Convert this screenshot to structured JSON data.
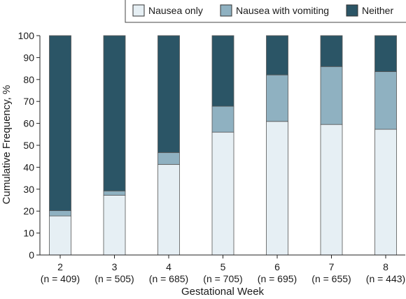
{
  "chart_data": {
    "type": "bar",
    "stacked": true,
    "cumulative": true,
    "categories": [
      "2",
      "3",
      "4",
      "5",
      "6",
      "7",
      "8"
    ],
    "category_sublabels": [
      "(n = 409)",
      "(n = 505)",
      "(n = 685)",
      "(n = 705)",
      "(n = 695)",
      "(n = 655)",
      "(n = 443)"
    ],
    "series": [
      {
        "name": "Nausea only",
        "color": "#e6eff4",
        "values": [
          17.8,
          27.2,
          41.3,
          56.0,
          60.9,
          59.5,
          57.3
        ]
      },
      {
        "name": "Nausea with vomiting",
        "color": "#8fb1c1",
        "values": [
          2.4,
          2.0,
          5.4,
          11.8,
          21.2,
          26.4,
          26.3
        ]
      },
      {
        "name": "Neither",
        "color": "#2b5566",
        "values": [
          79.8,
          70.8,
          53.3,
          32.2,
          17.9,
          14.1,
          16.4
        ]
      }
    ],
    "xlabel": "Gestational Week",
    "ylabel": "Cumulative Frequency, %",
    "ylim": [
      0,
      100
    ],
    "yticks": [
      0,
      10,
      20,
      30,
      40,
      50,
      60,
      70,
      80,
      90,
      100
    ],
    "grid": false,
    "legend_position": "top"
  }
}
